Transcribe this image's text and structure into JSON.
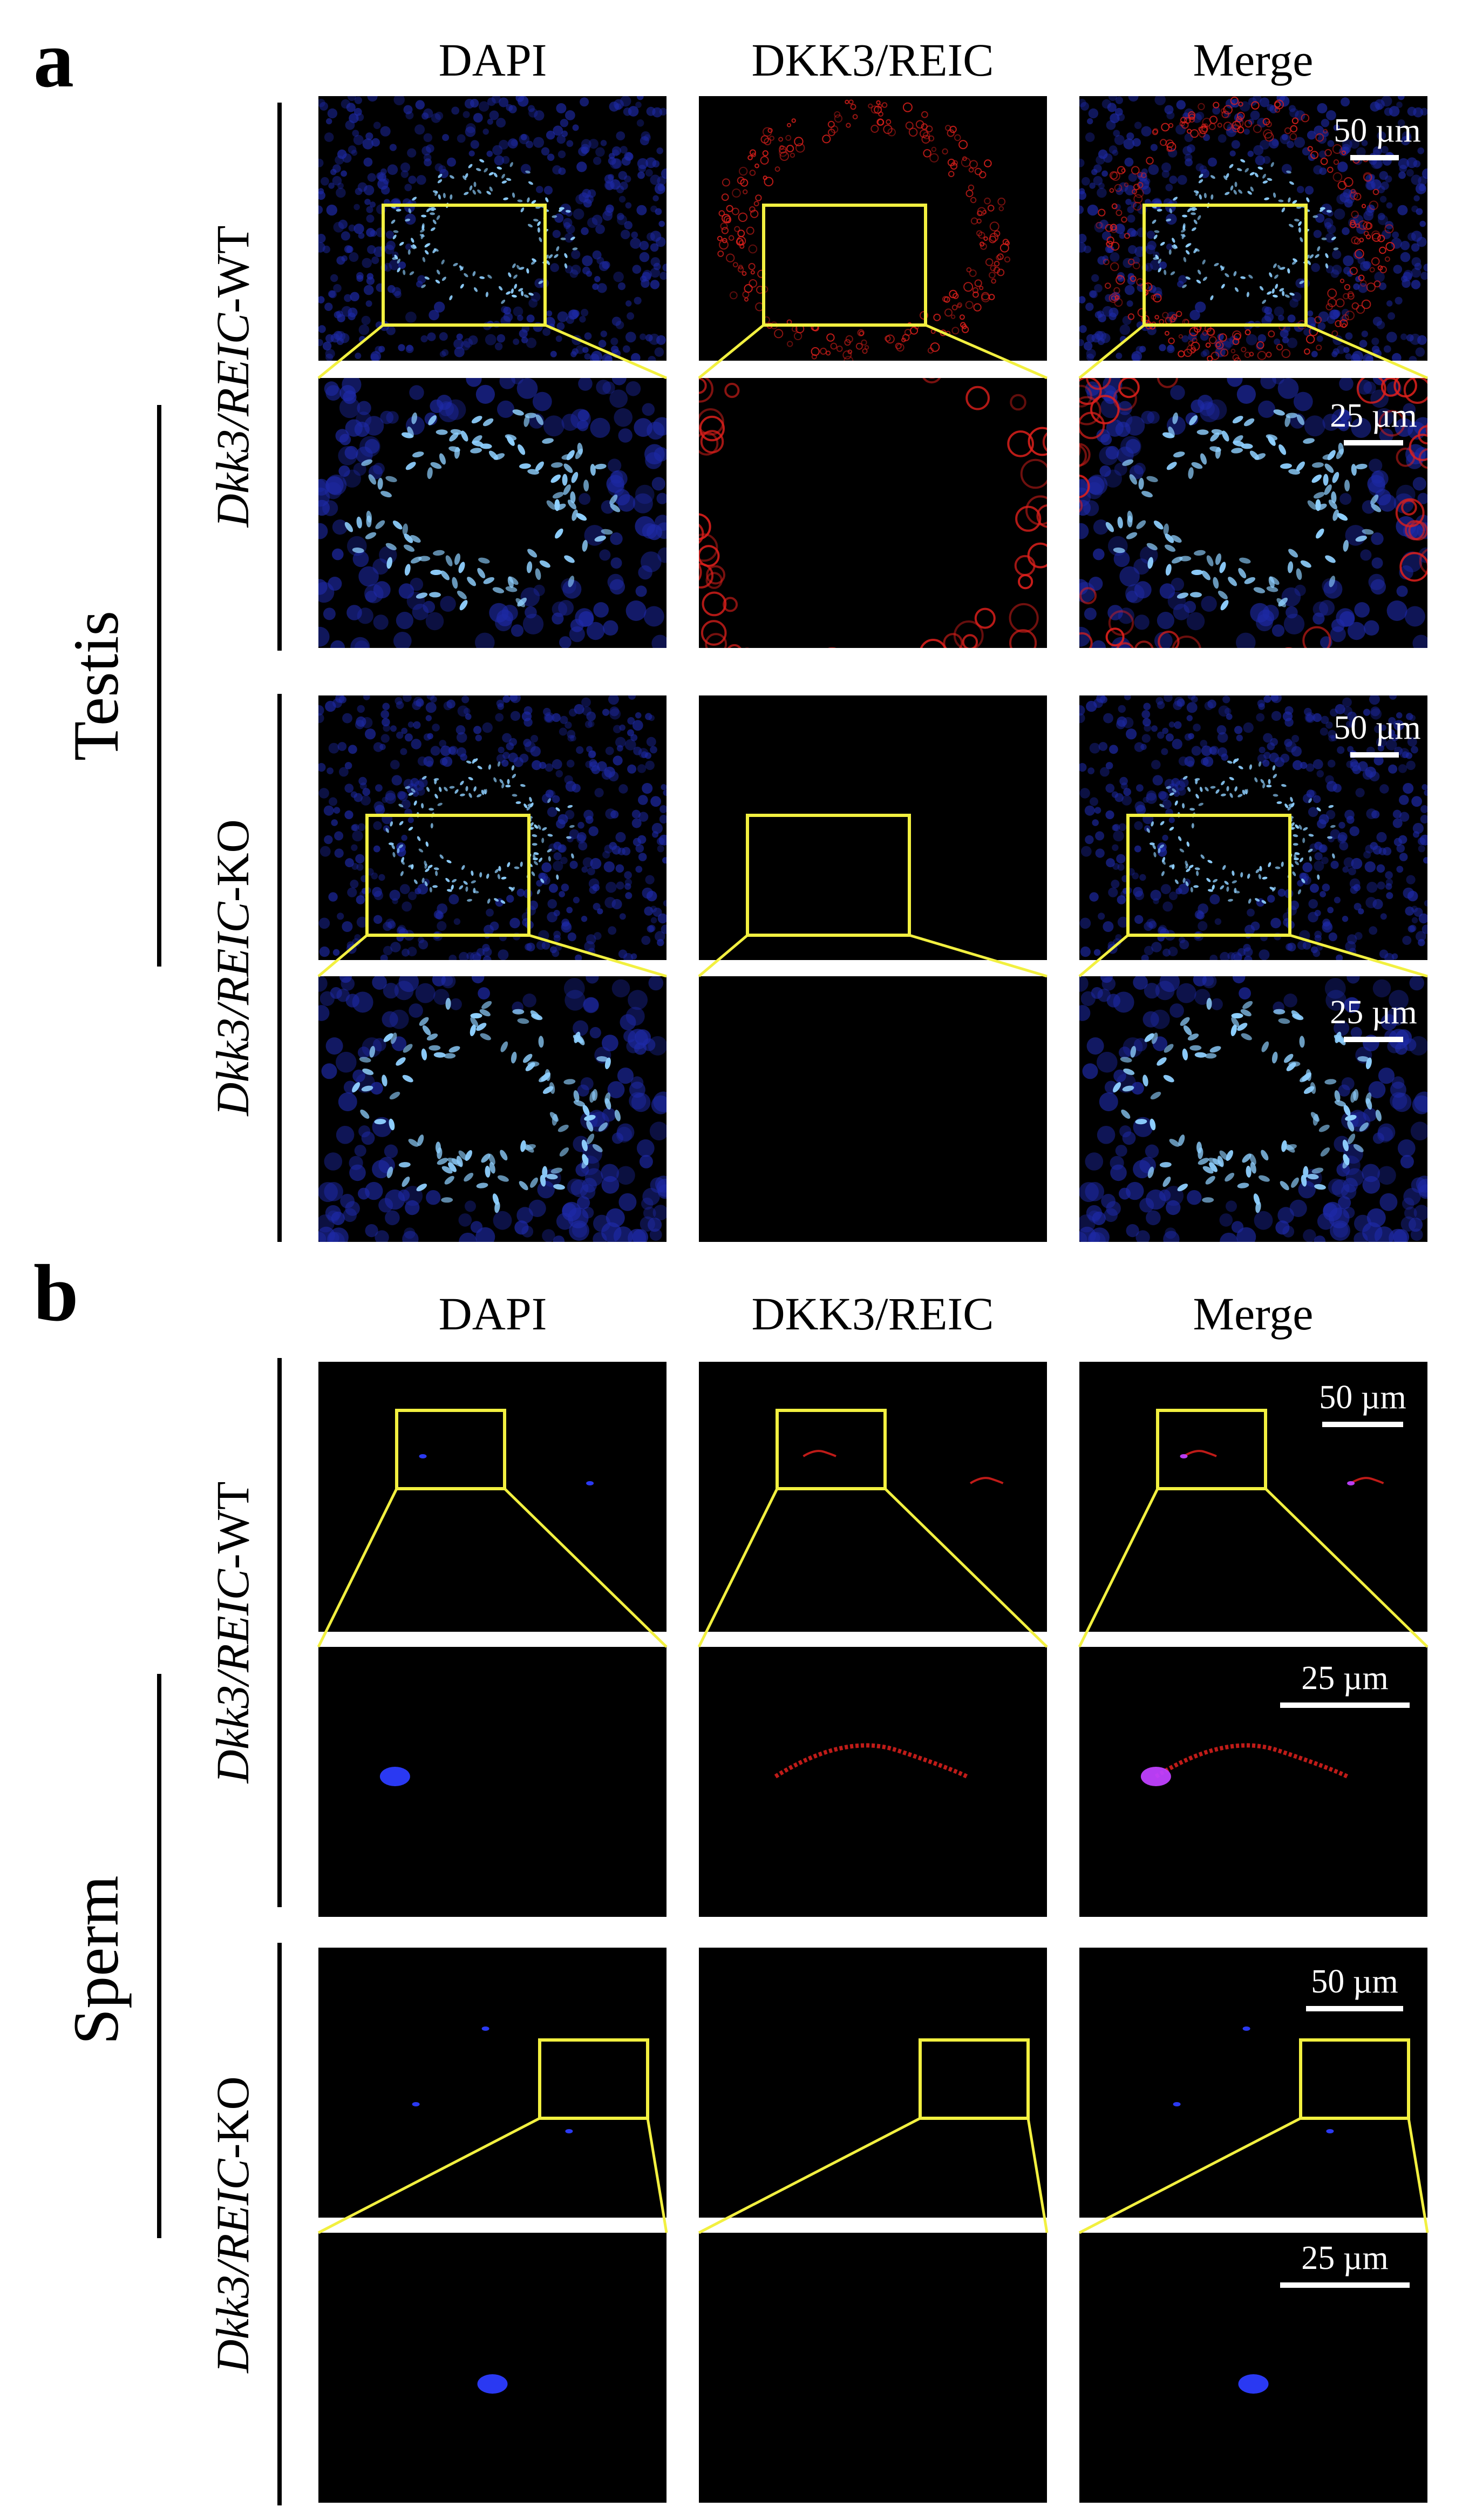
{
  "panels": [
    {
      "letter": "a",
      "group": "Testis",
      "columns": [
        "DAPI",
        "DKK3/REIC",
        "Merge"
      ],
      "genotypes": [
        {
          "gene_italic": "Dkk3/REIC",
          "suffix": "-WT"
        },
        {
          "gene_italic": "Dkk3/REIC",
          "suffix": "-KO"
        }
      ],
      "scale_overview": "50 µm",
      "scale_zoom": "25 µm"
    },
    {
      "letter": "b",
      "group": "Sperm",
      "columns": [
        "DAPI",
        "DKK3/REIC",
        "Merge"
      ],
      "genotypes": [
        {
          "gene_italic": "Dkk3/REIC",
          "suffix": "-WT"
        },
        {
          "gene_italic": "Dkk3/REIC",
          "suffix": "-KO"
        }
      ],
      "scale_overview": "50 µm",
      "scale_zoom": "25 µm"
    }
  ],
  "colors": {
    "dapi": "#2c3cff",
    "dkk3": "#e0201c",
    "merge_overlap": "#c040ff",
    "zoom_box": "#f2f040",
    "panel_bg": "#000000"
  }
}
